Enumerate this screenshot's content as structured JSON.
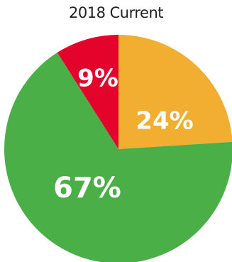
{
  "chart_data": {
    "type": "pie",
    "title": "2018 Current",
    "slices": [
      {
        "label": "24%",
        "value": 24,
        "color": "#F2AE31"
      },
      {
        "label": "67%",
        "value": 67,
        "color": "#4BAF48"
      },
      {
        "label": "9%",
        "value": 9,
        "color": "#E3032B"
      }
    ],
    "start_angle_deg": 0,
    "direction": "clockwise",
    "legend": "none"
  }
}
